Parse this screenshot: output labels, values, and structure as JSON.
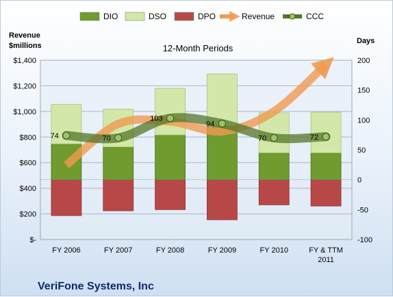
{
  "chart_data": {
    "type": "bar",
    "title": "12-Month Periods",
    "company": "VeriFone Systems, Inc",
    "ylabel_left": "Revenue\n$millions",
    "ylabel_right": "Days",
    "categories": [
      "FY 2006",
      "FY 2007",
      "FY 2008",
      "FY 2009",
      "FY 2010",
      "FY & TTM\n2011"
    ],
    "ylim_left": [
      0,
      1400
    ],
    "ylim_right": [
      -100,
      200
    ],
    "left_ticks": [
      "$-",
      "$200",
      "$400",
      "$600",
      "$800",
      "$1,000",
      "$1,200",
      "$1,400"
    ],
    "right_ticks": [
      "-100",
      "-50",
      "0",
      "50",
      "100",
      "150",
      "200"
    ],
    "legend": [
      "DIO",
      "DSO",
      "DPO",
      "Revenue",
      "CCC"
    ],
    "legend_position": "top",
    "series": [
      {
        "name": "DIO",
        "axis": "right",
        "values": [
          60,
          55,
          75,
          90,
          45,
          45
        ]
      },
      {
        "name": "DSO",
        "axis": "right",
        "values": [
          66,
          63,
          78,
          87,
          67,
          68
        ]
      },
      {
        "name": "DPO",
        "axis": "right",
        "values": [
          -60,
          -52,
          -50,
          -67,
          -42,
          -44
        ]
      },
      {
        "name": "Revenue",
        "axis": "left",
        "values": [
          581,
          903,
          922,
          845,
          1001,
          1368
        ]
      },
      {
        "name": "CCC",
        "axis": "right",
        "values": [
          74,
          70,
          103,
          94,
          70,
          72
        ]
      }
    ],
    "ccc_labels": [
      "74",
      "70",
      "103",
      "94",
      "70",
      "72"
    ],
    "colors": {
      "DIO": "#6f9b2f",
      "DSO": "#d3e8a8",
      "DPO": "#b84848",
      "Revenue": "#f09a50",
      "CCC": "#56752a"
    },
    "grid": true
  }
}
